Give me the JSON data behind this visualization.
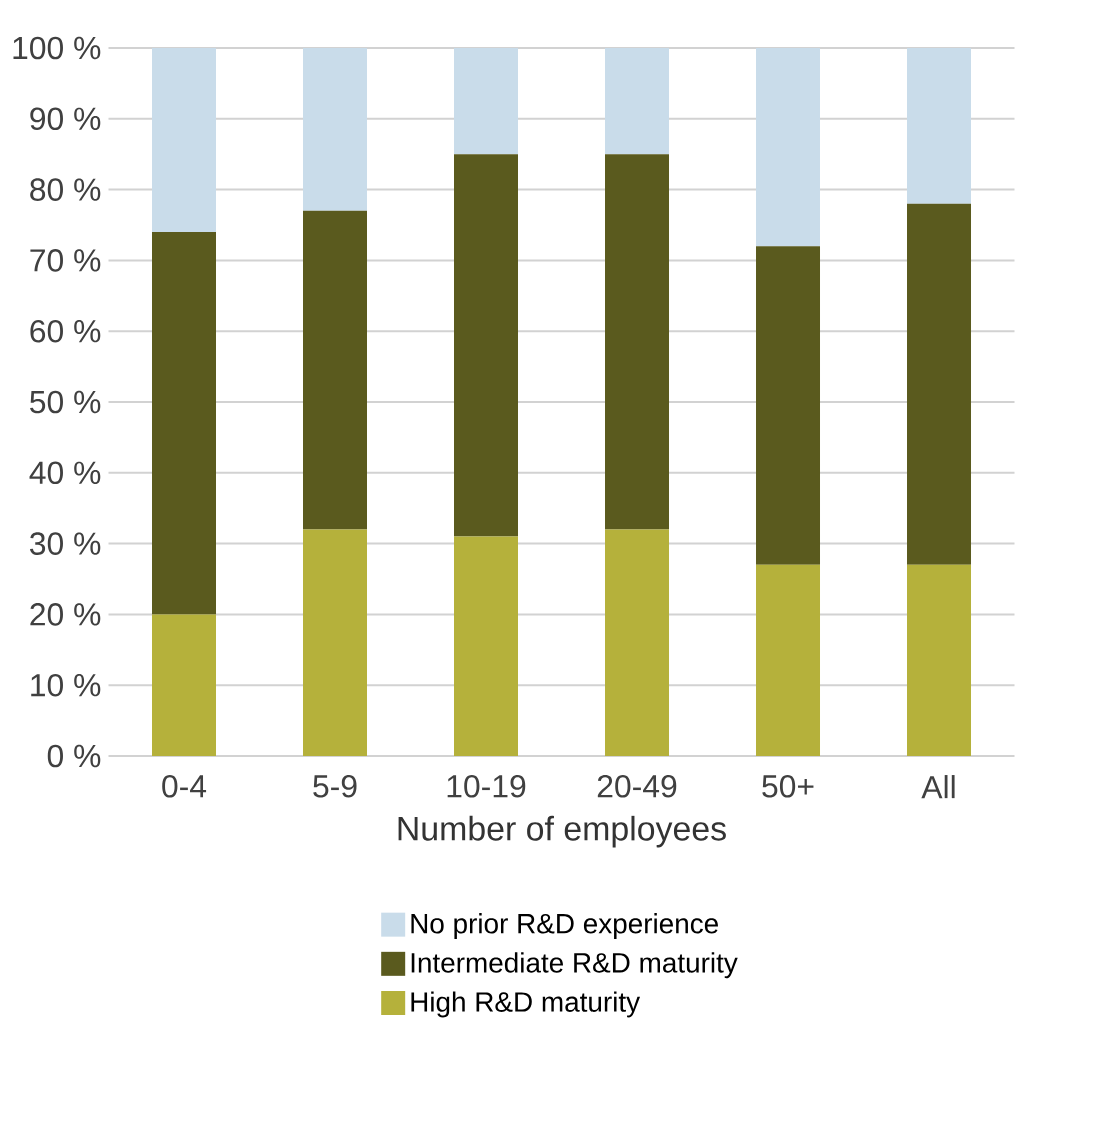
{
  "chart_data": {
    "type": "bar",
    "stacked": true,
    "xlabel": "Number of employees",
    "categories": [
      "0-4",
      "5-9",
      "10-19",
      "20-49",
      "50+",
      "All"
    ],
    "series": [
      {
        "name": "High R&D maturity",
        "color": "#b5b13b",
        "values": [
          20,
          32,
          31,
          32,
          27,
          27
        ]
      },
      {
        "name": "Intermediate R&D maturity",
        "color": "#5a5a1e",
        "values": [
          54,
          45,
          54,
          53,
          45,
          51
        ]
      },
      {
        "name": "No prior R&D experience",
        "color": "#c9dcea",
        "values": [
          26,
          23,
          15,
          15,
          28,
          22
        ]
      }
    ],
    "ylim": [
      0,
      100
    ],
    "yticks": [
      {
        "value": 0,
        "label": "0 %"
      },
      {
        "value": 10,
        "label": "10 %"
      },
      {
        "value": 20,
        "label": "20 %"
      },
      {
        "value": 30,
        "label": "30 %"
      },
      {
        "value": 40,
        "label": "40 %"
      },
      {
        "value": 50,
        "label": "50 %"
      },
      {
        "value": 60,
        "label": "60 %"
      },
      {
        "value": 70,
        "label": "70 %"
      },
      {
        "value": 80,
        "label": "80 %"
      },
      {
        "value": 90,
        "label": "90 %"
      },
      {
        "value": 100,
        "label": "100 %"
      }
    ],
    "grid": "y",
    "legend": "bottom"
  }
}
